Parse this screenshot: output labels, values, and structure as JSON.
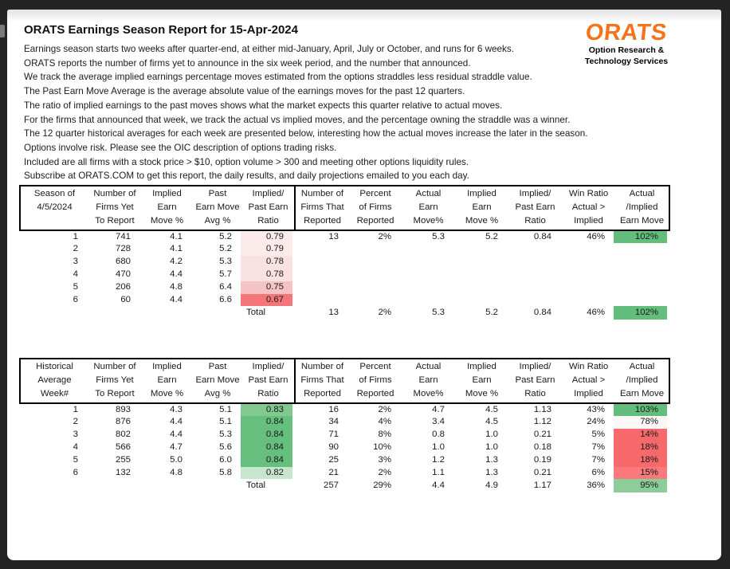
{
  "report": {
    "title": "ORATS Earnings Season Report for 15-Apr-2024",
    "intro_lines": [
      "Earnings season starts two weeks after quarter-end, at either mid-January, April, July or October, and runs for 6 weeks.",
      "ORATS reports the number of firms yet to announce in the six week period, and the number that announced.",
      "We track the average implied earnings percentage moves estimated from the options straddles less residual straddle value.",
      "The Past Earn Move Average is the average absolute value of the earnings moves for the past 12 quarters.",
      "The ratio of implied earnings to the past moves shows what the market expects this quarter relative to actual moves.",
      "For the firms that announced that week, we track the actual vs implied moves, and the percentage owning the straddle was a winner.",
      "The 12 quarter historical averages for each week are presented below, interesting how the actual moves increase the later in the season.",
      "Options involve risk. Please see the OIC description of options trading risks.",
      "Included are all firms with a stock price > $10, option volume > 300 and meeting other options liquidity rules.",
      "Subscribe at ORATS.COM to get this report, the daily results, and daily projections emailed to you each day."
    ]
  },
  "logo": {
    "text": "ORATS",
    "subtitle_line1": "Option Research &",
    "subtitle_line2": "Technology Services",
    "color": "#f4731c"
  },
  "colors": {
    "frame_dark": "#242424",
    "strong_green": "#63be7b",
    "strong_red": "#f8696b"
  },
  "season_table": {
    "headers": [
      [
        "Season of",
        "4/5/2024",
        ""
      ],
      [
        "Number of",
        "Firms Yet",
        "To Report"
      ],
      [
        "Implied",
        "Earn",
        "Move %"
      ],
      [
        "Past",
        "Earn Move",
        "Avg %"
      ],
      [
        "Implied/",
        "Past Earn",
        "Ratio"
      ],
      [
        "Number of",
        "Firms That",
        "Reported"
      ],
      [
        "Percent",
        "of Firms",
        "Reported"
      ],
      [
        "Actual",
        "Earn",
        "Move%"
      ],
      [
        "Implied",
        "Earn",
        "Move %"
      ],
      [
        "Implied/",
        "Past Earn",
        "Ratio"
      ],
      [
        "Win Ratio",
        "Actual >",
        "Implied"
      ],
      [
        "Actual",
        "/Implied",
        "Earn Move"
      ]
    ],
    "rows": [
      {
        "cells": [
          "1",
          "741",
          "4.1",
          "5.2",
          "0.79",
          "13",
          "2%",
          "5.3",
          "5.2",
          "0.84",
          "46%",
          "102%"
        ],
        "bg": {
          "4": "#fcebeb",
          "11": "#63be7b"
        }
      },
      {
        "cells": [
          "2",
          "728",
          "4.1",
          "5.2",
          "0.79",
          "",
          "",
          "",
          "",
          "",
          "",
          ""
        ],
        "bg": {
          "4": "#fcebeb"
        }
      },
      {
        "cells": [
          "3",
          "680",
          "4.2",
          "5.3",
          "0.78",
          "",
          "",
          "",
          "",
          "",
          "",
          ""
        ],
        "bg": {
          "4": "#fbe2e2"
        }
      },
      {
        "cells": [
          "4",
          "470",
          "4.4",
          "5.7",
          "0.78",
          "",
          "",
          "",
          "",
          "",
          "",
          ""
        ],
        "bg": {
          "4": "#fbe2e2"
        }
      },
      {
        "cells": [
          "5",
          "206",
          "4.8",
          "6.4",
          "0.75",
          "",
          "",
          "",
          "",
          "",
          "",
          ""
        ],
        "bg": {
          "4": "#f6c3c5"
        }
      },
      {
        "cells": [
          "6",
          "60",
          "4.4",
          "6.6",
          "0.67",
          "",
          "",
          "",
          "",
          "",
          "",
          ""
        ],
        "bg": {
          "4": "#f4767a"
        }
      }
    ],
    "total": {
      "cells": [
        "",
        "",
        "",
        "",
        "Total",
        "13",
        "2%",
        "5.3",
        "5.2",
        "0.84",
        "46%",
        "102%"
      ],
      "bg": {
        "11": "#63be7b"
      }
    }
  },
  "historical_table": {
    "headers": [
      [
        "Historical",
        "Average",
        "Week#"
      ],
      [
        "Number of",
        "Firms Yet",
        "To Report"
      ],
      [
        "Implied",
        "Earn",
        "Move %"
      ],
      [
        "Past",
        "Earn Move",
        "Avg %"
      ],
      [
        "Implied/",
        "Past Earn",
        "Ratio"
      ],
      [
        "Number of",
        "Firms That",
        "Reported"
      ],
      [
        "Percent",
        "of Firms",
        "Reported"
      ],
      [
        "Actual",
        "Earn",
        "Move%"
      ],
      [
        "Implied",
        "Earn",
        "Move %"
      ],
      [
        "Implied/",
        "Past Earn",
        "Ratio"
      ],
      [
        "Win Ratio",
        "Actual >",
        "Implied"
      ],
      [
        "Actual",
        "/Implied",
        "Earn Move"
      ]
    ],
    "rows": [
      {
        "cells": [
          "1",
          "893",
          "4.3",
          "5.1",
          "0.83",
          "16",
          "2%",
          "4.7",
          "4.5",
          "1.13",
          "43%",
          "103%"
        ],
        "bg": {
          "4": "#82c991",
          "11": "#63be7b"
        }
      },
      {
        "cells": [
          "2",
          "876",
          "4.4",
          "5.1",
          "0.84",
          "34",
          "4%",
          "3.4",
          "4.5",
          "1.12",
          "24%",
          "78%"
        ],
        "bg": {
          "4": "#66bf7d",
          "11": "#fbf7f7"
        }
      },
      {
        "cells": [
          "3",
          "802",
          "4.4",
          "5.3",
          "0.84",
          "71",
          "8%",
          "0.8",
          "1.0",
          "0.21",
          "5%",
          "14%"
        ],
        "bg": {
          "4": "#66bf7d",
          "11": "#f8696b"
        }
      },
      {
        "cells": [
          "4",
          "566",
          "4.7",
          "5.6",
          "0.84",
          "90",
          "10%",
          "1.0",
          "1.0",
          "0.18",
          "7%",
          "18%"
        ],
        "bg": {
          "4": "#66bf7d",
          "11": "#f8696b"
        }
      },
      {
        "cells": [
          "5",
          "255",
          "5.0",
          "6.0",
          "0.84",
          "25",
          "3%",
          "1.2",
          "1.3",
          "0.19",
          "7%",
          "18%"
        ],
        "bg": {
          "4": "#66bf7d",
          "11": "#f8696b"
        }
      },
      {
        "cells": [
          "6",
          "132",
          "4.8",
          "5.8",
          "0.82",
          "21",
          "2%",
          "1.1",
          "1.3",
          "0.21",
          "6%",
          "15%"
        ],
        "bg": {
          "4": "#c8e6cd",
          "11": "#f9797c"
        }
      }
    ],
    "total": {
      "cells": [
        "",
        "",
        "",
        "",
        "Total",
        "257",
        "29%",
        "4.4",
        "4.9",
        "1.17",
        "36%",
        "95%"
      ],
      "bg": {
        "11": "#8ccd99"
      }
    }
  }
}
